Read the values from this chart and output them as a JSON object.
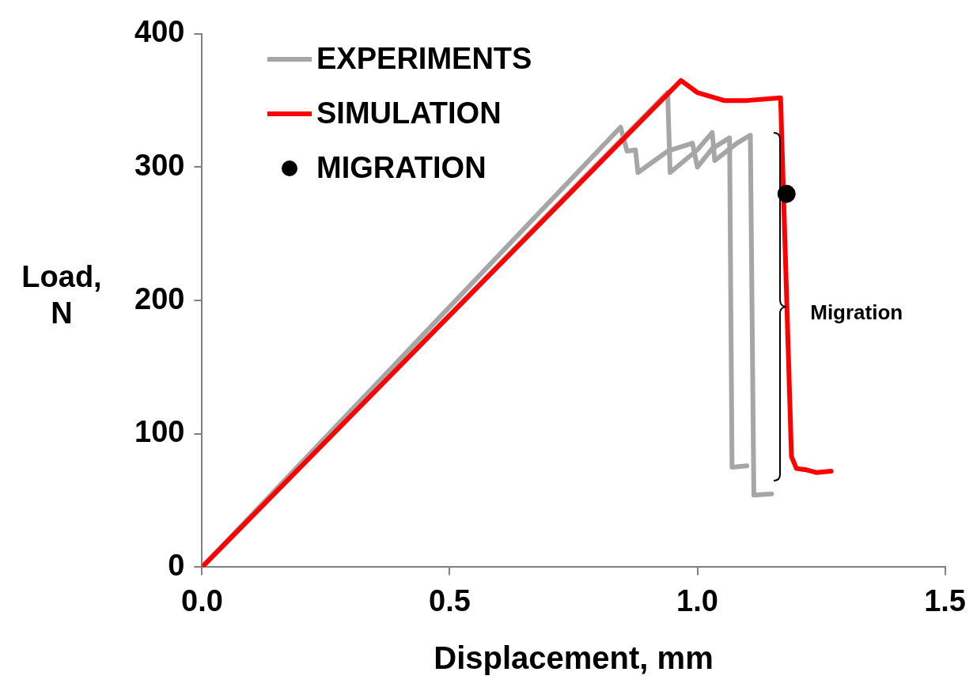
{
  "chart_data": {
    "type": "line",
    "xlabel": "Displacement, mm",
    "ylabel": "Load, N",
    "xlim": [
      0,
      1.5
    ],
    "xticks": [
      {
        "value": 0,
        "label": "0.0"
      },
      {
        "value": 0.5,
        "label": "0.5"
      },
      {
        "value": 1,
        "label": "1.0"
      },
      {
        "value": 1.5,
        "label": "1.5"
      }
    ],
    "ylim": [
      0,
      400
    ],
    "yticks": [
      0,
      100,
      200,
      300,
      400
    ],
    "grid": false,
    "legend": "top left",
    "line_style": "solid",
    "marker": "none",
    "annotations": [
      {
        "text": "Migration",
        "x": 1.18,
        "y": 192
      }
    ],
    "series": [
      {
        "name": "EXPERIMENTS",
        "color": "#a6a6a6",
        "x": [
          0,
          0.845,
          0.858,
          0.875,
          0.88,
          0.94,
          0.99,
          1.0,
          1.03,
          1.065,
          1.07,
          1.1
        ],
        "values": [
          0,
          330,
          312,
          313,
          296,
          312,
          318,
          300,
          314,
          322,
          75,
          76
        ]
      },
      {
        "color": "#a6a6a6",
        "x": [
          0,
          0.94,
          0.945,
          1.0,
          1.03,
          1.035,
          1.08,
          1.107,
          1.114,
          1.15
        ],
        "values": [
          0,
          356,
          296,
          313,
          326,
          305,
          318,
          324,
          54,
          55
        ]
      },
      {
        "name": "SIMULATION",
        "color": "#ff0000",
        "x": [
          0,
          0.967,
          1.0,
          1.054,
          1.1,
          1.168,
          1.19,
          1.2,
          1.22,
          1.24,
          1.27
        ],
        "values": [
          0,
          365,
          356,
          350,
          350,
          352,
          83,
          74,
          73,
          71,
          72
        ]
      },
      {
        "name": "MIGRATION",
        "type": "scatter",
        "marker": "circle",
        "color": "#000000",
        "x": [
          1.18
        ],
        "values": [
          280
        ]
      }
    ]
  }
}
